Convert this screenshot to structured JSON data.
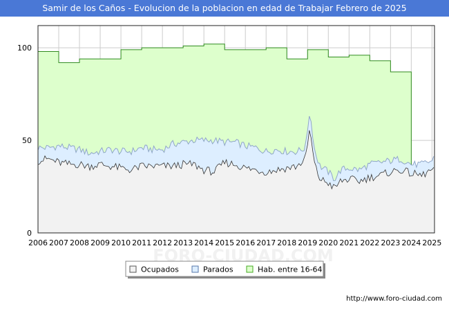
{
  "chart_data": {
    "type": "area",
    "title": "Samir de los Caños - Evolucion de la poblacion en edad de Trabajar Febrero de 2025",
    "xlabel": "",
    "ylabel": "",
    "xlim": [
      2006.0,
      2025.12
    ],
    "ylim": [
      0,
      112
    ],
    "yticks": [
      0,
      50,
      100
    ],
    "xticks": [
      2006,
      2007,
      2008,
      2009,
      2010,
      2011,
      2012,
      2013,
      2014,
      2015,
      2016,
      2017,
      2018,
      2019,
      2020,
      2021,
      2022,
      2023,
      2024,
      2025
    ],
    "grid": true,
    "legend_position": "bottom-center",
    "legend": [
      {
        "key": "ocupados",
        "label": "Ocupados",
        "color": "#f2f2f2"
      },
      {
        "key": "parados",
        "label": "Parados",
        "color": "#ddeeff"
      },
      {
        "key": "hab",
        "label": "Hab. entre 16-64",
        "color": "#ddffcc"
      }
    ],
    "series_hab_steps": [
      {
        "year": 2006,
        "value": 98
      },
      {
        "year": 2007,
        "value": 92
      },
      {
        "year": 2008,
        "value": 94
      },
      {
        "year": 2009,
        "value": 94
      },
      {
        "year": 2010,
        "value": 99
      },
      {
        "year": 2011,
        "value": 100
      },
      {
        "year": 2012,
        "value": 100
      },
      {
        "year": 2013,
        "value": 101
      },
      {
        "year": 2014,
        "value": 102
      },
      {
        "year": 2015,
        "value": 99
      },
      {
        "year": 2016,
        "value": 99
      },
      {
        "year": 2017,
        "value": 100
      },
      {
        "year": 2018,
        "value": 94
      },
      {
        "year": 2019,
        "value": 99
      },
      {
        "year": 2020,
        "value": 95
      },
      {
        "year": 2021,
        "value": 96
      },
      {
        "year": 2022,
        "value": 93
      },
      {
        "year": 2023,
        "value": 87
      }
    ],
    "series_hab_end_year": 2024.0,
    "series_active_anchors": [
      [
        2006.0,
        46
      ],
      [
        2006.5,
        46
      ],
      [
        2007.0,
        47
      ],
      [
        2007.5,
        46
      ],
      [
        2008.0,
        45
      ],
      [
        2008.5,
        43
      ],
      [
        2009.0,
        44
      ],
      [
        2009.5,
        45
      ],
      [
        2010.0,
        44
      ],
      [
        2010.5,
        44
      ],
      [
        2011.0,
        46
      ],
      [
        2011.5,
        45
      ],
      [
        2012.0,
        45
      ],
      [
        2012.5,
        48
      ],
      [
        2013.0,
        49
      ],
      [
        2013.5,
        50
      ],
      [
        2014.0,
        50
      ],
      [
        2014.5,
        50
      ],
      [
        2015.0,
        49
      ],
      [
        2015.5,
        49
      ],
      [
        2016.0,
        47
      ],
      [
        2016.5,
        46
      ],
      [
        2017.0,
        44
      ],
      [
        2017.5,
        45
      ],
      [
        2018.0,
        44
      ],
      [
        2018.5,
        44
      ],
      [
        2018.9,
        46
      ],
      [
        2019.1,
        66
      ],
      [
        2019.35,
        44
      ],
      [
        2019.6,
        36
      ],
      [
        2020.0,
        33
      ],
      [
        2020.3,
        29
      ],
      [
        2020.6,
        34
      ],
      [
        2021.0,
        35
      ],
      [
        2021.5,
        34
      ],
      [
        2022.0,
        37
      ],
      [
        2022.5,
        38
      ],
      [
        2023.0,
        39
      ],
      [
        2023.5,
        40
      ],
      [
        2024.0,
        37
      ],
      [
        2024.5,
        37
      ],
      [
        2025.0,
        39
      ],
      [
        2025.12,
        41
      ]
    ],
    "series_ocupados_anchors": [
      [
        2006.0,
        39
      ],
      [
        2006.5,
        40
      ],
      [
        2007.0,
        38
      ],
      [
        2007.5,
        37
      ],
      [
        2008.0,
        37
      ],
      [
        2008.5,
        36
      ],
      [
        2009.0,
        37
      ],
      [
        2009.5,
        36
      ],
      [
        2010.0,
        35
      ],
      [
        2010.5,
        34
      ],
      [
        2011.0,
        36
      ],
      [
        2011.5,
        36
      ],
      [
        2012.0,
        36
      ],
      [
        2012.5,
        36
      ],
      [
        2013.0,
        37
      ],
      [
        2013.5,
        37
      ],
      [
        2014.0,
        34
      ],
      [
        2014.5,
        33
      ],
      [
        2015.0,
        38
      ],
      [
        2015.5,
        37
      ],
      [
        2016.0,
        35
      ],
      [
        2016.5,
        34
      ],
      [
        2017.0,
        33
      ],
      [
        2017.5,
        34
      ],
      [
        2018.0,
        35
      ],
      [
        2018.5,
        36
      ],
      [
        2018.9,
        40
      ],
      [
        2019.1,
        56
      ],
      [
        2019.35,
        36
      ],
      [
        2019.6,
        29
      ],
      [
        2020.0,
        27
      ],
      [
        2020.3,
        24
      ],
      [
        2020.6,
        28
      ],
      [
        2021.0,
        29
      ],
      [
        2021.5,
        28
      ],
      [
        2022.0,
        30
      ],
      [
        2022.5,
        31
      ],
      [
        2023.0,
        33
      ],
      [
        2023.5,
        34
      ],
      [
        2024.0,
        32
      ],
      [
        2024.5,
        31
      ],
      [
        2025.0,
        34
      ],
      [
        2025.12,
        33
      ]
    ]
  },
  "watermark": "FORO-CIUDAD.COM",
  "footer": {
    "url": "http://www.foro-ciudad.com"
  }
}
